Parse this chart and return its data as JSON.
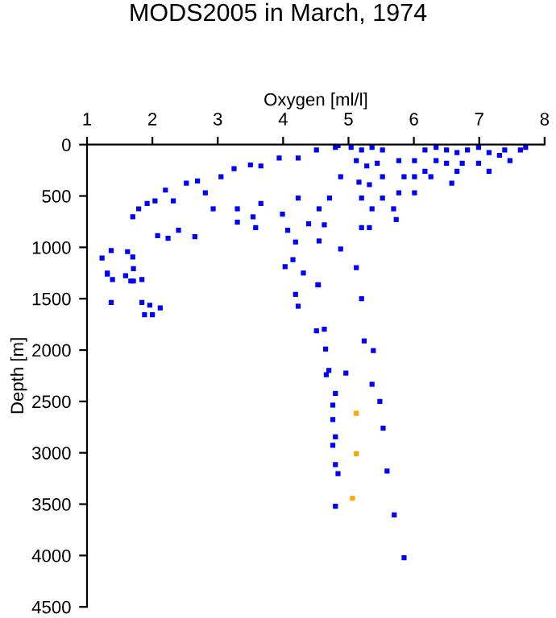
{
  "chart_data": {
    "type": "scatter",
    "title": "MODS2005 in March, 1974",
    "xlabel": "Oxygen [ml/l]",
    "ylabel": "Depth [m]",
    "xlim": [
      1,
      8
    ],
    "xticks": [
      1,
      2,
      3,
      4,
      5,
      6,
      7,
      8
    ],
    "ylim": [
      4500,
      0
    ],
    "yticks": [
      0,
      500,
      1000,
      1500,
      2000,
      2500,
      3000,
      3500,
      4000,
      4500
    ],
    "grid": false,
    "legend": false,
    "marker": "square",
    "series": [
      {
        "color": "#0000ff",
        "x": [
          1.23,
          1.37,
          1.31,
          1.62,
          1.7,
          1.71,
          1.67,
          1.7,
          1.79,
          1.92,
          2.04,
          2.2,
          2.32,
          2.52,
          2.69,
          2.81,
          3.05,
          3.25,
          3.5,
          3.66,
          3.94,
          4.23,
          4.51,
          4.8,
          2.08,
          2.24,
          2.4,
          2.65,
          2.93,
          3.3,
          3.54,
          3.3,
          3.58,
          3.66,
          3.99,
          4.07,
          4.23,
          4.39,
          4.63,
          4.55,
          4.71,
          4.88,
          4.88,
          4.19,
          4.55,
          4.15,
          4.03,
          4.31,
          4.53,
          5.12,
          4.84,
          5.04,
          5.2,
          5.36,
          5.52,
          5.12,
          5.28,
          5.44,
          5.16,
          5.32,
          5.52,
          5.2,
          5.36,
          5.52,
          5.69,
          5.73,
          5.77,
          5.2,
          5.32,
          5.77,
          6.01,
          5.85,
          6.01,
          6.17,
          6.34,
          6.5,
          6.66,
          6.34,
          6.5,
          6.17,
          6.58,
          6.66,
          6.82,
          6.99,
          7.15,
          7.31,
          7.47,
          7.39,
          7.71,
          7.63,
          6.99,
          7.15,
          6.74,
          6.01,
          6.26,
          1.31,
          1.39,
          1.59,
          1.71,
          1.84,
          1.37,
          1.84,
          1.96,
          1.88,
          2.0,
          2.12,
          4.19,
          4.23,
          4.54,
          5.2,
          4.51,
          4.63,
          4.65,
          5.24,
          5.38,
          4.7,
          4.66,
          4.96,
          5.36,
          4.8,
          4.76,
          5.48,
          4.76,
          5.53,
          4.8,
          4.76,
          4.8,
          4.84,
          5.59,
          4.8,
          5.7,
          5.85
        ],
        "values": [
          1104,
          1031,
          1260,
          1042,
          1094,
          1208,
          1328,
          703,
          625,
          573,
          547,
          443,
          547,
          375,
          354,
          469,
          313,
          234,
          198,
          208,
          130,
          130,
          52,
          26,
          886,
          912,
          834,
          896,
          625,
          625,
          703,
          755,
          808,
          573,
          677,
          834,
          521,
          771,
          781,
          625,
          521,
          313,
          1016,
          948,
          938,
          1120,
          1188,
          1250,
          1365,
          1198,
          10,
          26,
          52,
          26,
          52,
          156,
          208,
          182,
          365,
          390,
          313,
          521,
          625,
          521,
          625,
          729,
          469,
          808,
          808,
          156,
          469,
          313,
          156,
          52,
          26,
          52,
          78,
          156,
          182,
          260,
          375,
          260,
          52,
          26,
          78,
          104,
          156,
          52,
          26,
          52,
          182,
          260,
          182,
          313,
          313,
          1250,
          1313,
          1276,
          1328,
          1313,
          1536,
          1536,
          1563,
          1656,
          1656,
          1589,
          1458,
          1573,
          1365,
          1500,
          1813,
          1797,
          1990,
          1911,
          2005,
          2198,
          2240,
          2224,
          2333,
          2422,
          2536,
          2500,
          2677,
          2760,
          2844,
          2927,
          3115,
          3203,
          3177,
          3521,
          3604,
          4021
        ]
      },
      {
        "color": "#ffa500",
        "x": [
          5.12,
          5.12,
          5.06
        ],
        "values": [
          2615,
          3010,
          3443
        ]
      }
    ]
  }
}
